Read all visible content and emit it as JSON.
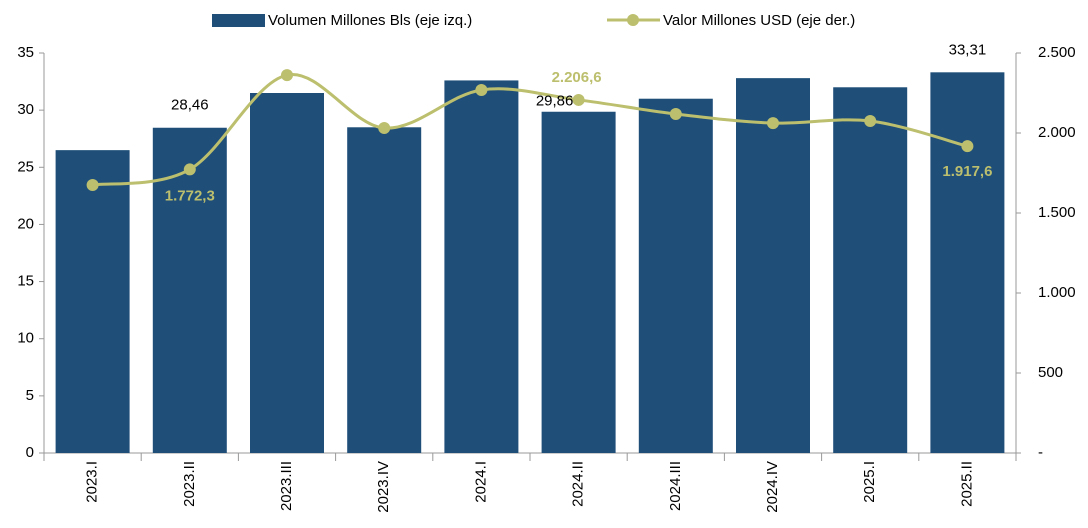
{
  "chart_data": {
    "type": "bar_line",
    "categories": [
      "2023.I",
      "2023.II",
      "2023.III",
      "2023.IV",
      "2024.I",
      "2024.II",
      "2024.III",
      "2024.IV",
      "2025.I",
      "2025.II"
    ],
    "series": [
      {
        "name": "Volumen Millones Bls (eje izq.)",
        "color": "#1f4e79",
        "type": "bar",
        "axis": "y",
        "values": [
          26.5,
          28.46,
          31.5,
          28.5,
          32.6,
          29.86,
          31.0,
          32.8,
          32.0,
          33.31
        ],
        "value_labels": [
          null,
          "28,46",
          null,
          null,
          null,
          "29,86",
          null,
          null,
          null,
          "33,31"
        ]
      },
      {
        "name": "Valor Millones USD (eje der.)",
        "color": "#bcbf6d",
        "type": "line",
        "axis": "y2",
        "values": [
          1675,
          1772.3,
          2362,
          2031,
          2269,
          2206.6,
          2119,
          2062,
          2075,
          1917.6
        ],
        "value_labels": [
          null,
          "1.772,3",
          null,
          null,
          null,
          "2.206,6",
          null,
          null,
          null,
          "1.917,6"
        ]
      }
    ],
    "ylim": [
      0,
      35
    ],
    "yticks": [
      0,
      5,
      10,
      15,
      20,
      25,
      30,
      35
    ],
    "y2lim": [
      0,
      2500
    ],
    "y2ticks": [
      {
        "value": 0,
        "label": "-"
      },
      500,
      {
        "value": 1000,
        "label": "1.000"
      },
      {
        "value": 1500,
        "label": "1.500"
      },
      {
        "value": 2000,
        "label": "2.000"
      },
      {
        "value": 2500,
        "label": "2.500"
      }
    ],
    "legend": "top",
    "grid": false
  }
}
